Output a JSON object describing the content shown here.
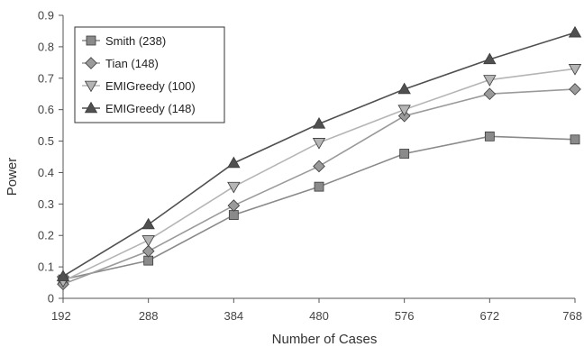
{
  "chart_data": {
    "type": "line",
    "xlabel": "Number of Cases",
    "ylabel": "Power",
    "x": [
      192,
      288,
      384,
      480,
      576,
      672,
      768
    ],
    "x_tick_labels": [
      "192",
      "288",
      "384",
      "480",
      "576",
      "672",
      "768"
    ],
    "ylim": [
      0,
      0.9
    ],
    "y_ticks": [
      0,
      0.1,
      0.2,
      0.3,
      0.4,
      0.5,
      0.6,
      0.7,
      0.8,
      0.9
    ],
    "y_tick_labels": [
      "0",
      "0.1",
      "0.2",
      "0.3",
      "0.4",
      "0.5",
      "0.6",
      "0.7",
      "0.8",
      "0.9"
    ],
    "grid": false,
    "legend_position": "top-left",
    "series": [
      {
        "name": "Smith (238)",
        "marker": "square",
        "color": "#8a8a8a",
        "values": [
          0.06,
          0.12,
          0.265,
          0.355,
          0.46,
          0.515,
          0.505
        ]
      },
      {
        "name": "Tian (148)",
        "marker": "diamond",
        "color": "#9a9a9a",
        "values": [
          0.045,
          0.15,
          0.295,
          0.42,
          0.58,
          0.65,
          0.665
        ]
      },
      {
        "name": "EMIGreedy (100)",
        "marker": "triangle-down",
        "color": "#b5b5b5",
        "values": [
          0.055,
          0.185,
          0.355,
          0.495,
          0.6,
          0.695,
          0.73
        ]
      },
      {
        "name": "EMIGreedy (148)",
        "marker": "triangle-up",
        "color": "#505050",
        "values": [
          0.07,
          0.235,
          0.43,
          0.555,
          0.665,
          0.76,
          0.845
        ]
      }
    ]
  }
}
